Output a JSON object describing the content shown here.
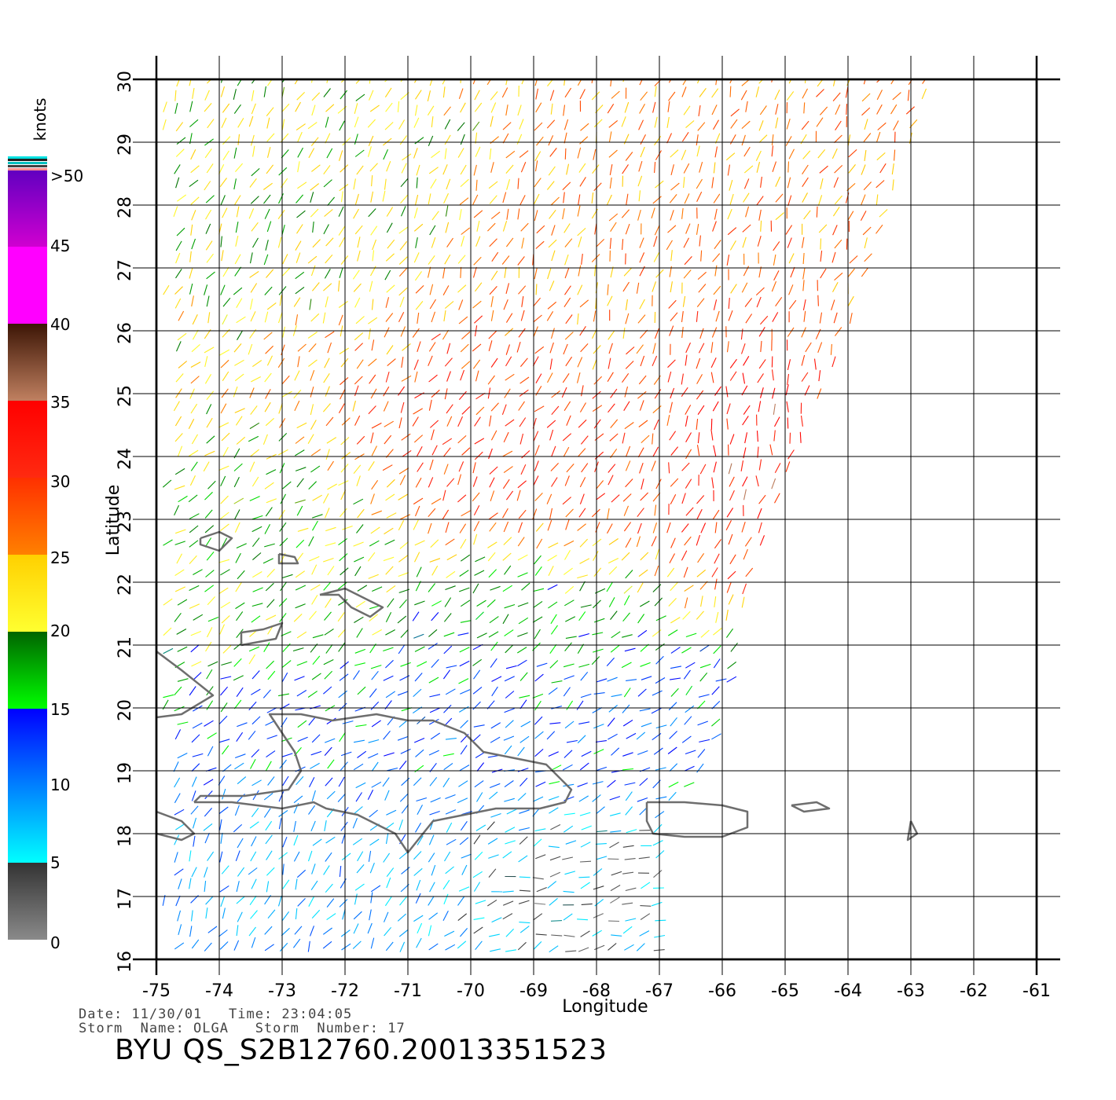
{
  "chart_data": {
    "type": "wind-vector-map",
    "xlabel": "Longitude",
    "ylabel": "Latitude",
    "xlim": [
      -75,
      -61
    ],
    "ylim": [
      16,
      30
    ],
    "x_ticks": [
      "-75",
      "-74",
      "-73",
      "-72",
      "-71",
      "-70",
      "-69",
      "-68",
      "-67",
      "-66",
      "-65",
      "-64",
      "-63",
      "-62",
      "-61"
    ],
    "y_ticks": [
      "16",
      "17",
      "18",
      "19",
      "20",
      "21",
      "22",
      "23",
      "24",
      "25",
      "26",
      "27",
      "28",
      "29",
      "30"
    ],
    "grid": true,
    "colorbar": {
      "title": "knots",
      "labels": [
        ">50",
        "45",
        "40",
        "35",
        "30",
        "25",
        "20",
        "15",
        "10",
        "5",
        "0"
      ],
      "bands": [
        {
          "range": [
            0,
            5
          ],
          "color_top": "#333333",
          "color_bottom": "#8a8a8a"
        },
        {
          "range": [
            5,
            10
          ],
          "color_top": "#0080ff",
          "color_bottom": "#00ffff"
        },
        {
          "range": [
            10,
            15
          ],
          "color_top": "#0000ff",
          "color_bottom": "#0080ff"
        },
        {
          "range": [
            15,
            20
          ],
          "color_top": "#006400",
          "color_bottom": "#00ff00"
        },
        {
          "range": [
            20,
            25
          ],
          "color_top": "#ffd000",
          "color_bottom": "#ffff30"
        },
        {
          "range": [
            25,
            30
          ],
          "color_top": "#ff3000",
          "color_bottom": "#ff8000"
        },
        {
          "range": [
            30,
            35
          ],
          "color_top": "#ff0000",
          "color_bottom": "#ff2a10"
        },
        {
          "range": [
            35,
            40
          ],
          "color_top": "#3c1505",
          "color_bottom": "#c08060"
        },
        {
          "range": [
            40,
            45
          ],
          "color_top": "#ff00ff",
          "color_bottom": "#ff00ff"
        },
        {
          "range": [
            45,
            50
          ],
          "color_top": "#6000c0",
          "color_bottom": "#d000d0"
        }
      ]
    },
    "swath_corners_lonlat": [
      [
        -74.9,
        30
      ],
      [
        -62.6,
        30
      ],
      [
        -64.0,
        26
      ],
      [
        -65.6,
        22
      ],
      [
        -66.0,
        20
      ],
      [
        -66.3,
        19
      ],
      [
        -67.0,
        18.4
      ],
      [
        -67.0,
        16
      ],
      [
        -74.9,
        16
      ]
    ],
    "wind_regions": [
      {
        "lon": [
          -75,
          -70
        ],
        "lat": [
          26.5,
          30
        ],
        "knots": 21,
        "dir_deg": 60
      },
      {
        "lon": [
          -70,
          -64
        ],
        "lat": [
          24.5,
          30
        ],
        "knots": 26,
        "dir_deg": 65
      },
      {
        "lon": [
          -72,
          -67
        ],
        "lat": [
          22.5,
          26
        ],
        "knots": 30,
        "dir_deg": 55
      },
      {
        "lon": [
          -67,
          -64.5
        ],
        "lat": [
          22.5,
          27
        ],
        "knots": 33,
        "dir_deg": 80
      },
      {
        "lon": [
          -75,
          -71
        ],
        "lat": [
          20.5,
          24
        ],
        "knots": 19,
        "dir_deg": 40
      },
      {
        "lon": [
          -71,
          -67.5
        ],
        "lat": [
          20,
          22.5
        ],
        "knots": 17,
        "dir_deg": 35
      },
      {
        "lon": [
          -73,
          -66
        ],
        "lat": [
          18.5,
          21
        ],
        "knots": 12,
        "dir_deg": 30
      },
      {
        "lon": [
          -75,
          -70
        ],
        "lat": [
          16,
          18.5
        ],
        "knots": 9,
        "dir_deg": 60
      },
      {
        "lon": [
          -70,
          -67
        ],
        "lat": [
          16,
          18.2
        ],
        "knots": 4,
        "dir_deg": 15
      }
    ],
    "coastlines": [
      {
        "name": "hispaniola",
        "lonlat": [
          [
            -74.4,
            18.5
          ],
          [
            -73.8,
            18.5
          ],
          [
            -73.0,
            18.4
          ],
          [
            -72.5,
            18.5
          ],
          [
            -72.3,
            18.4
          ],
          [
            -71.8,
            18.3
          ],
          [
            -71.2,
            18.0
          ],
          [
            -71.0,
            17.7
          ],
          [
            -70.6,
            18.2
          ],
          [
            -70.1,
            18.3
          ],
          [
            -69.6,
            18.4
          ],
          [
            -68.9,
            18.4
          ],
          [
            -68.5,
            18.5
          ],
          [
            -68.4,
            18.7
          ],
          [
            -68.8,
            19.1
          ],
          [
            -69.3,
            19.2
          ],
          [
            -69.8,
            19.3
          ],
          [
            -70.1,
            19.6
          ],
          [
            -70.6,
            19.8
          ],
          [
            -71.0,
            19.8
          ],
          [
            -71.5,
            19.9
          ],
          [
            -72.2,
            19.8
          ],
          [
            -72.7,
            19.9
          ],
          [
            -73.2,
            19.9
          ],
          [
            -73.0,
            19.6
          ],
          [
            -72.8,
            19.3
          ],
          [
            -72.7,
            19.0
          ],
          [
            -72.9,
            18.7
          ],
          [
            -73.6,
            18.6
          ],
          [
            -74.3,
            18.6
          ],
          [
            -74.4,
            18.5
          ]
        ]
      },
      {
        "name": "puerto-rico",
        "lonlat": [
          [
            -67.2,
            18.5
          ],
          [
            -66.6,
            18.5
          ],
          [
            -66.0,
            18.45
          ],
          [
            -65.6,
            18.35
          ],
          [
            -65.6,
            18.1
          ],
          [
            -66.0,
            17.95
          ],
          [
            -66.6,
            17.95
          ],
          [
            -67.1,
            18.0
          ],
          [
            -67.2,
            18.2
          ],
          [
            -67.2,
            18.5
          ]
        ]
      },
      {
        "name": "cuba-east",
        "lonlat": [
          [
            -75,
            20.9
          ],
          [
            -74.6,
            20.6
          ],
          [
            -74.1,
            20.2
          ],
          [
            -74.6,
            19.9
          ],
          [
            -75,
            19.85
          ]
        ]
      },
      {
        "name": "great-inagua",
        "lonlat": [
          [
            -73.65,
            21.0
          ],
          [
            -73.1,
            21.1
          ],
          [
            -73.0,
            21.35
          ],
          [
            -73.3,
            21.25
          ],
          [
            -73.65,
            21.2
          ],
          [
            -73.65,
            21.0
          ]
        ]
      },
      {
        "name": "turks-caicos",
        "lonlat": [
          [
            -72.4,
            21.8
          ],
          [
            -72.0,
            21.9
          ],
          [
            -71.8,
            21.8
          ],
          [
            -71.6,
            21.7
          ],
          [
            -71.4,
            21.6
          ],
          [
            -71.6,
            21.45
          ],
          [
            -71.9,
            21.6
          ],
          [
            -72.1,
            21.8
          ],
          [
            -72.4,
            21.8
          ]
        ]
      },
      {
        "name": "jamaica-edge",
        "lonlat": [
          [
            -75,
            18.35
          ],
          [
            -74.6,
            18.2
          ],
          [
            -74.4,
            18.0
          ],
          [
            -74.6,
            17.9
          ],
          [
            -75,
            18.0
          ]
        ]
      },
      {
        "name": "mayaguana",
        "lonlat": [
          [
            -73.05,
            22.45
          ],
          [
            -72.8,
            22.4
          ],
          [
            -72.75,
            22.3
          ],
          [
            -73.05,
            22.3
          ],
          [
            -73.05,
            22.45
          ]
        ]
      },
      {
        "name": "acklins",
        "lonlat": [
          [
            -74.3,
            22.7
          ],
          [
            -74.0,
            22.8
          ],
          [
            -73.8,
            22.7
          ],
          [
            -74.0,
            22.5
          ],
          [
            -74.3,
            22.6
          ],
          [
            -74.3,
            22.7
          ]
        ]
      },
      {
        "name": "virgin-islands",
        "lonlat": [
          [
            -64.9,
            18.45
          ],
          [
            -64.5,
            18.5
          ],
          [
            -64.3,
            18.4
          ],
          [
            -64.7,
            18.35
          ],
          [
            -64.9,
            18.45
          ]
        ]
      },
      {
        "name": "leewards",
        "lonlat": [
          [
            -63.0,
            18.2
          ],
          [
            -62.9,
            18.0
          ],
          [
            -63.05,
            17.9
          ],
          [
            -63.0,
            18.2
          ]
        ]
      }
    ]
  },
  "info": {
    "line1": "Date: 11/30/01   Time: 23:04:05",
    "line2": "Storm  Name: OLGA   Storm  Number: 17",
    "title": "BYU  QS_S2B12760.20013351523"
  }
}
